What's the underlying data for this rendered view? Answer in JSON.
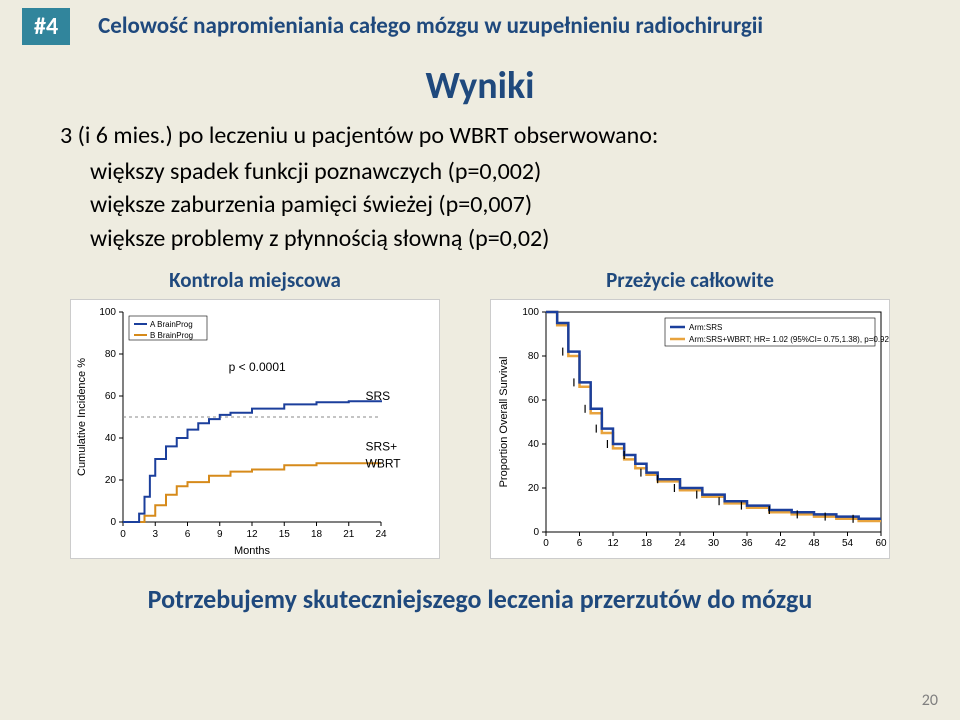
{
  "badge": "#4",
  "title": "Celowość napromieniania całego mózgu w uzupełnieniu radiochirurgii",
  "subtitle": "Wyniki",
  "intro": "3 (i 6 mies.) po leczeniu u pacjentów po WBRT obserwowano:",
  "bullet1": "większy spadek funkcji poznawczych (p=0,002)",
  "bullet2": "większe zaburzenia pamięci świeżej (p=0,007)",
  "bullet3": "większe problemy z płynnością słowną (p=0,02)",
  "chart1": {
    "label": "Kontrola miejscowa",
    "ylabel": "Cumulative Incidence %",
    "xlabel": "Months",
    "xlim": [
      0,
      24
    ],
    "xticks": [
      0,
      3,
      6,
      9,
      12,
      15,
      18,
      21,
      24
    ],
    "ylim": [
      0,
      100
    ],
    "yticks": [
      0,
      20,
      40,
      60,
      80,
      100
    ],
    "legend_box": {
      "items": [
        "A BrainProg",
        "B BrainProg"
      ],
      "colors": [
        "#1b3f9c",
        "#d68a1a"
      ]
    },
    "p_text": "p < 0.0001",
    "series_labels": [
      {
        "text": "SRS",
        "x": 22,
        "y": 58
      },
      {
        "text": "SRS+",
        "x": 22,
        "y": 34
      },
      {
        "text": "WBRT",
        "x": 22,
        "y": 26
      }
    ],
    "srs": {
      "x": [
        0,
        1,
        1.5,
        2,
        2.5,
        3,
        4,
        5,
        6,
        7,
        8,
        9,
        10,
        12,
        15,
        18,
        21,
        24
      ],
      "y": [
        0,
        0,
        4,
        12,
        22,
        30,
        36,
        40,
        44,
        47,
        49,
        51,
        52,
        54,
        56,
        57,
        57.5,
        58
      ],
      "color": "#1b3f9c",
      "width": 2
    },
    "srs_wbrt": {
      "x": [
        0,
        1.5,
        2,
        3,
        4,
        5,
        6,
        8,
        10,
        12,
        15,
        18,
        21,
        24
      ],
      "y": [
        0,
        0,
        3,
        8,
        13,
        17,
        19,
        22,
        24,
        25,
        27,
        28,
        28,
        28
      ],
      "color": "#d68a1a",
      "width": 2
    },
    "ref_line_y": 50,
    "ref_color": "#888888"
  },
  "chart2": {
    "label": "Przeżycie całkowite",
    "ylabel": "Proportion Overall Survival",
    "xlim": [
      0,
      60
    ],
    "xticks": [
      0,
      6,
      12,
      18,
      24,
      30,
      36,
      42,
      48,
      54,
      60
    ],
    "ylim": [
      0,
      100
    ],
    "yticks": [
      0,
      20,
      40,
      60,
      80,
      100
    ],
    "legend": [
      "Arm:SRS",
      "Arm:SRS+WBRT; HR= 1.02 (95%CI= 0.75,1.38), p=0.92"
    ],
    "legend_colors": [
      "#1b3f9c",
      "#e8a33d"
    ],
    "srs": {
      "x": [
        0,
        2,
        4,
        6,
        8,
        10,
        12,
        14,
        16,
        18,
        20,
        24,
        28,
        32,
        36,
        40,
        44,
        48,
        52,
        56,
        60
      ],
      "y": [
        100,
        95,
        82,
        68,
        56,
        47,
        40,
        35,
        31,
        27,
        24,
        20,
        17,
        14,
        12,
        10,
        9,
        8,
        7,
        6,
        6
      ],
      "color": "#1b3f9c",
      "width": 2.5
    },
    "wbrt": {
      "x": [
        0,
        2,
        4,
        6,
        8,
        10,
        12,
        14,
        16,
        18,
        20,
        24,
        28,
        32,
        36,
        40,
        44,
        48,
        52,
        56,
        60
      ],
      "y": [
        100,
        94,
        80,
        66,
        54,
        45,
        38,
        33,
        29,
        26,
        23,
        19,
        16,
        13,
        11,
        9,
        8,
        7,
        6,
        5,
        5
      ],
      "color": "#e8a33d",
      "width": 2.5
    },
    "tick_marks": true
  },
  "footer": "Potrzebujemy skuteczniejszego leczenia przerzutów do mózgu",
  "page_num": "20"
}
